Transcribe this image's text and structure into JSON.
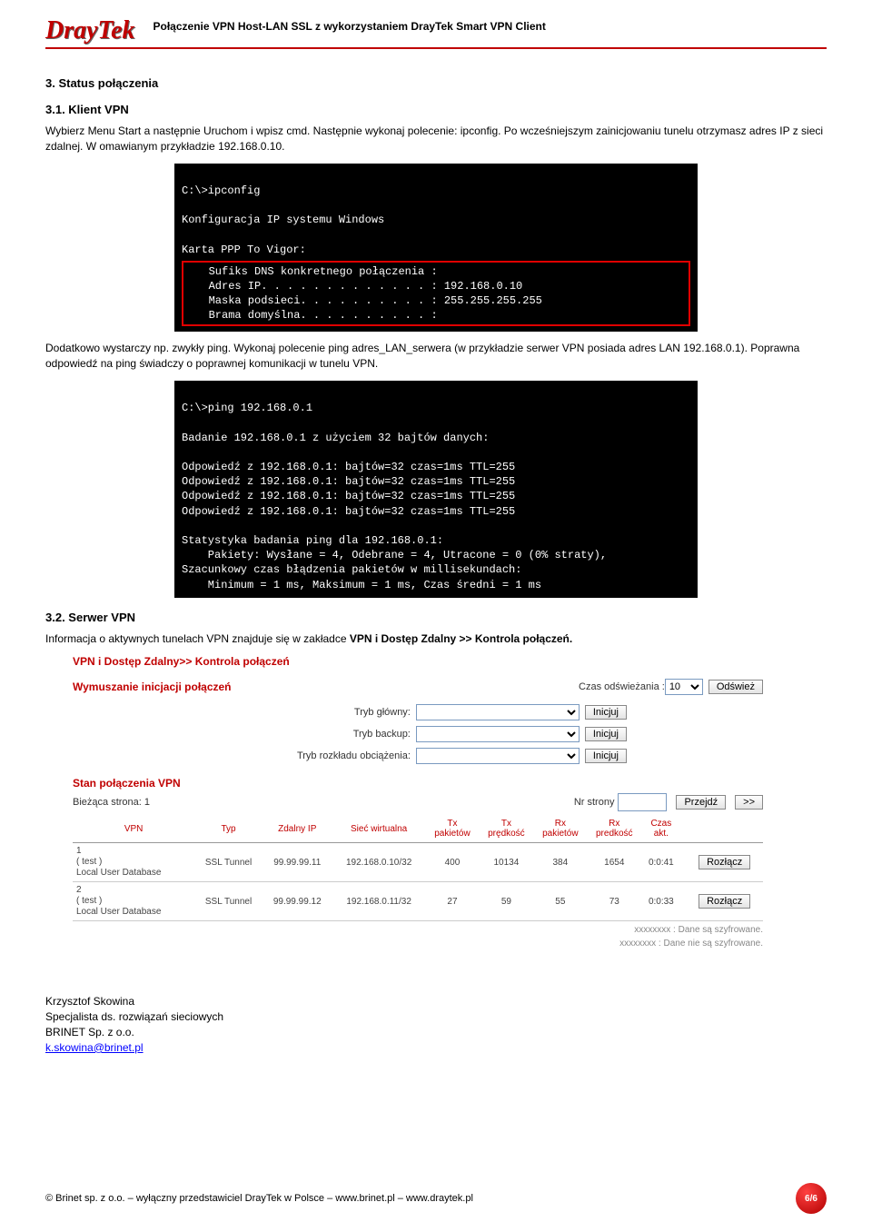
{
  "header": {
    "logo": "DrayTek",
    "title": "Połączenie VPN Host-LAN SSL z wykorzystaniem DrayTek Smart VPN Client"
  },
  "s3": {
    "title": "3. Status połączenia",
    "s31_title": "3.1. Klient VPN",
    "s31_para": "Wybierz Menu Start a następnie Uruchom i wpisz cmd. Następnie wykonaj polecenie: ipconfig. Po wcześniejszym zainicjowaniu tunelu otrzymasz adres IP z sieci zdalnej. W omawianym przykładzie 192.168.0.10.",
    "s31_para2": "Dodatkowo wystarczy np. zwykły ping. Wykonaj polecenie ping adres_LAN_serwera (w przykładzie serwer VPN posiada adres LAN 192.168.0.1). Poprawna odpowiedź na ping świadczy o poprawnej komunikacji w tunelu VPN.",
    "s32_title": "3.2. Serwer VPN",
    "s32_para_a": "Informacja o aktywnych tunelach VPN  znajduje się w zakładce ",
    "s32_para_b": "VPN i Dostęp Zdalny >> Kontrola połączeń."
  },
  "term1": {
    "l1": "C:\\>ipconfig",
    "l2": "Konfiguracja IP systemu Windows",
    "l3": "Karta PPP To Vigor:",
    "h1": "   Sufiks DNS konkretnego połączenia :",
    "h2": "   Adres IP. . . . . . . . . . . . . : 192.168.0.10",
    "h3": "   Maska podsieci. . . . . . . . . . : 255.255.255.255",
    "h4": "   Brama domyślna. . . . . . . . . . :"
  },
  "term2": {
    "l1": "C:\\>ping 192.168.0.1",
    "l2": "Badanie 192.168.0.1 z użyciem 32 bajtów danych:",
    "r1": "Odpowiedź z 192.168.0.1: bajtów=32 czas=1ms TTL=255",
    "r2": "Odpowiedź z 192.168.0.1: bajtów=32 czas=1ms TTL=255",
    "r3": "Odpowiedź z 192.168.0.1: bajtów=32 czas=1ms TTL=255",
    "r4": "Odpowiedź z 192.168.0.1: bajtów=32 czas=1ms TTL=255",
    "s1": "Statystyka badania ping dla 192.168.0.1:",
    "s2": "    Pakiety: Wysłane = 4, Odebrane = 4, Utracone = 0 (0% straty),",
    "s3": "Szacunkowy czas błądzenia pakietów w millisekundach:",
    "s4": "    Minimum = 1 ms, Maksimum = 1 ms, Czas średni = 1 ms"
  },
  "vpn": {
    "breadcrumb": "VPN i Dostęp Zdalny>> Kontrola połączeń",
    "force_title": "Wymuszanie inicjacji połączeń",
    "refresh_label": "Czas odświeżania :",
    "refresh_value": "10",
    "refresh_btn": "Odśwież",
    "row_main": "Tryb główny:",
    "row_backup": "Tryb backup:",
    "row_load": "Tryb rozkładu obciążenia:",
    "init_btn": "Inicjuj",
    "status_title": "Stan połączenia VPN",
    "page_label": "Bieżąca strona: 1",
    "pgnr_label": "Nr strony",
    "go_btn": "Przejdź",
    "next_btn": ">>",
    "cols": {
      "c1": "VPN",
      "c2": "Typ",
      "c3": "Zdalny IP",
      "c4": "Sieć wirtualna",
      "c5a": "Tx",
      "c5b": "pakietów",
      "c6a": "Tx",
      "c6b": "prędkość",
      "c7a": "Rx",
      "c7b": "pakietów",
      "c8a": "Rx",
      "c8b": "predkość",
      "c9a": "Czas",
      "c9b": "akt."
    },
    "rows": [
      {
        "idx": "1",
        "name": "( test )",
        "db": "Local User Database",
        "type": "SSL Tunnel",
        "ip": "99.99.99.11",
        "net": "192.168.0.10/32",
        "txp": "400",
        "txs": "10134",
        "rxp": "384",
        "rxs": "1654",
        "time": "0:0:41",
        "btn": "Rozłącz"
      },
      {
        "idx": "2",
        "name": "( test )",
        "db": "Local User Database",
        "type": "SSL Tunnel",
        "ip": "99.99.99.12",
        "net": "192.168.0.11/32",
        "txp": "27",
        "txs": "59",
        "rxp": "55",
        "rxs": "73",
        "time": "0:0:33",
        "btn": "Rozłącz"
      }
    ],
    "note1": "xxxxxxxx : Dane są szyfrowane.",
    "note2": "xxxxxxxx : Dane nie są szyfrowane."
  },
  "sig": {
    "l1": "Krzysztof Skowina",
    "l2": "Specjalista ds. rozwiązań sieciowych",
    "l3": "BRINET Sp. z o.o.",
    "email": "k.skowina@brinet.pl"
  },
  "footer": {
    "text": "© Brinet sp. z o.o. – wyłączny przedstawiciel DrayTek w Polsce – www.brinet.pl – www.draytek.pl",
    "page": "6/6"
  }
}
